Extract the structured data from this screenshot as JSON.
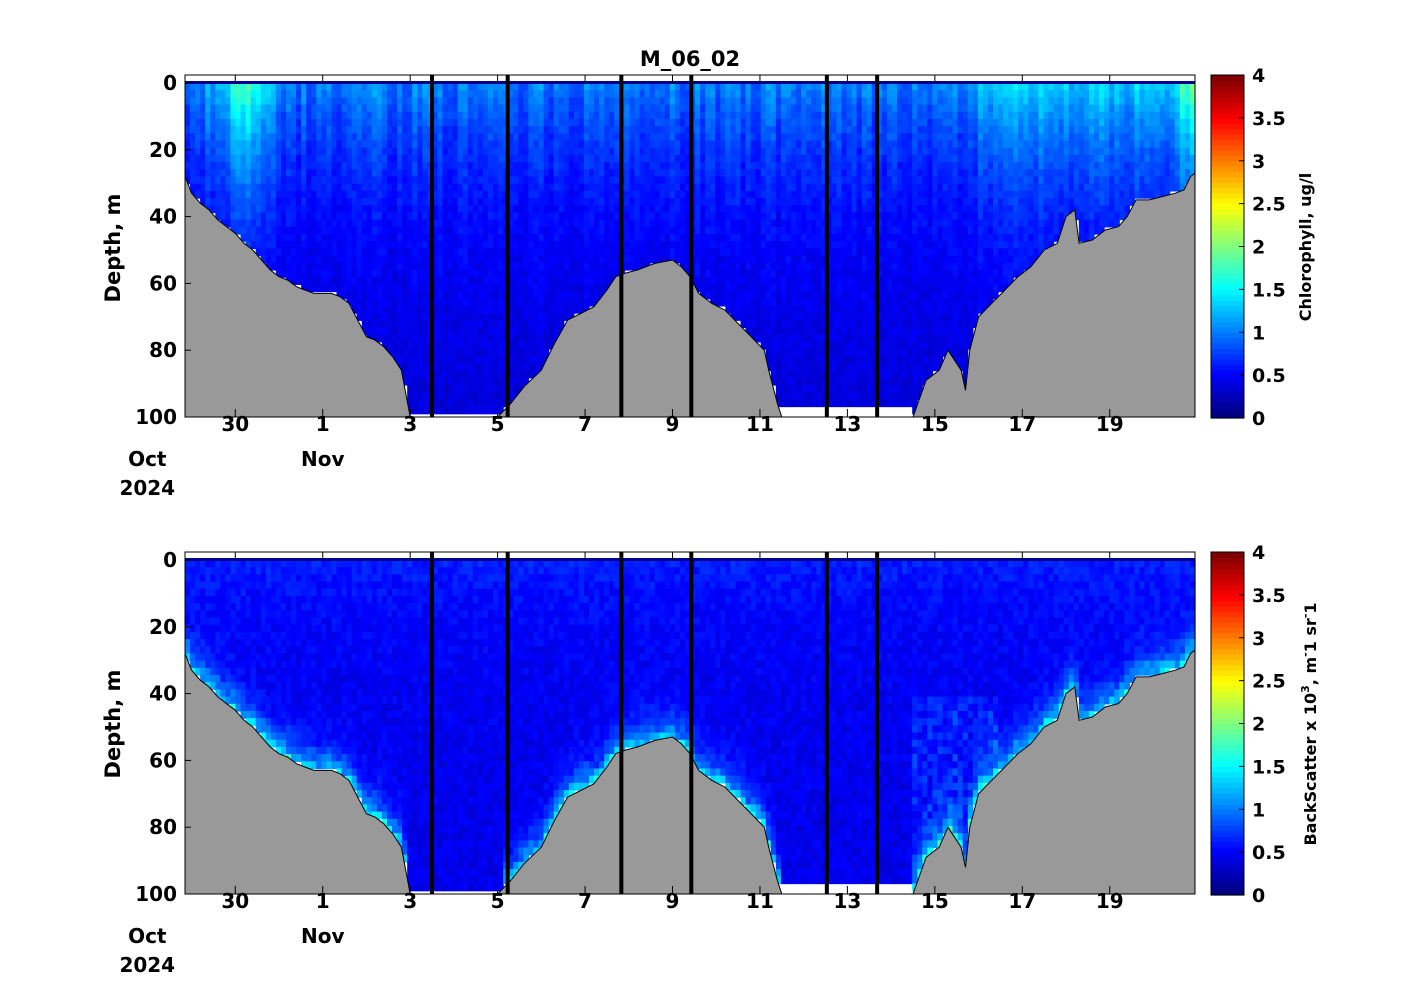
{
  "figure_title": "M_06_02",
  "colors": {
    "bathymetry": "#999999",
    "transect_lines": "#000000",
    "colormap": "jet"
  },
  "chart_data": [
    {
      "type": "heatmap",
      "name": "chlorophyll-section",
      "ylabel": "Depth, m",
      "colorbar_label": "Chlorophyll, ug/l",
      "clim": [
        0,
        4
      ],
      "colorbar_ticks": [
        "0",
        "0.5",
        "1",
        "1.5",
        "2",
        "2.5",
        "3",
        "3.5",
        "4"
      ],
      "ylim": [
        100,
        0
      ],
      "yticks": [
        "0",
        "20",
        "40",
        "60",
        "80",
        "100"
      ],
      "xticks": [
        {
          "day": 30,
          "label": "30",
          "sub": "Oct",
          "year": "2024"
        },
        {
          "day": 32,
          "label": "1",
          "sub": "Nov"
        },
        {
          "day": 34,
          "label": "3"
        },
        {
          "day": 36,
          "label": "5"
        },
        {
          "day": 38,
          "label": "7"
        },
        {
          "day": 40,
          "label": "9"
        },
        {
          "day": 42,
          "label": "11"
        },
        {
          "day": 44,
          "label": "13"
        },
        {
          "day": 46,
          "label": "15"
        },
        {
          "day": 48,
          "label": "17"
        },
        {
          "day": 50,
          "label": "19"
        }
      ],
      "xlim": [
        28.85,
        51.95
      ]
    },
    {
      "type": "heatmap",
      "name": "backscatter-section",
      "ylabel": "Depth, m",
      "colorbar_label_parts": [
        "BackScatter x 10",
        "3",
        ", m",
        "-",
        "1 sr",
        "-",
        "1"
      ],
      "clim": [
        0,
        4
      ],
      "colorbar_ticks": [
        "0",
        "0.5",
        "1",
        "1.5",
        "2",
        "2.5",
        "3",
        "3.5",
        "4"
      ],
      "ylim": [
        100,
        0
      ],
      "yticks": [
        "0",
        "20",
        "40",
        "60",
        "80",
        "100"
      ],
      "xticks": [
        {
          "day": 30,
          "label": "30",
          "sub": "Oct",
          "year": "2024"
        },
        {
          "day": 32,
          "label": "1",
          "sub": "Nov"
        },
        {
          "day": 34,
          "label": "3"
        },
        {
          "day": 36,
          "label": "5"
        },
        {
          "day": 38,
          "label": "7"
        },
        {
          "day": 40,
          "label": "9"
        },
        {
          "day": 42,
          "label": "11"
        },
        {
          "day": 44,
          "label": "13"
        },
        {
          "day": 46,
          "label": "15"
        },
        {
          "day": 48,
          "label": "17"
        },
        {
          "day": 50,
          "label": "19"
        }
      ],
      "xlim": [
        28.85,
        51.95
      ]
    }
  ],
  "transect_boundaries_day": [
    34.5,
    36.23,
    38.83,
    40.43,
    43.53,
    44.68
  ],
  "bathymetry_profile": [
    [
      28.85,
      28
    ],
    [
      29.0,
      33
    ],
    [
      29.2,
      36
    ],
    [
      29.4,
      38
    ],
    [
      29.6,
      41
    ],
    [
      29.8,
      43
    ],
    [
      30.0,
      45
    ],
    [
      30.2,
      48
    ],
    [
      30.4,
      50
    ],
    [
      30.6,
      53
    ],
    [
      30.8,
      56
    ],
    [
      31.0,
      58
    ],
    [
      31.2,
      59
    ],
    [
      31.4,
      61
    ],
    [
      31.6,
      62
    ],
    [
      31.8,
      63
    ],
    [
      32.0,
      63
    ],
    [
      32.2,
      63
    ],
    [
      32.4,
      64
    ],
    [
      32.6,
      66
    ],
    [
      32.8,
      71
    ],
    [
      33.0,
      76
    ],
    [
      33.2,
      77
    ],
    [
      33.4,
      79
    ],
    [
      33.6,
      82
    ],
    [
      33.8,
      86
    ],
    [
      33.9,
      93
    ],
    [
      34.0,
      100
    ],
    [
      35.8,
      100
    ],
    [
      36.0,
      100
    ],
    [
      36.3,
      96
    ],
    [
      36.6,
      91
    ],
    [
      37.0,
      86
    ],
    [
      37.3,
      78
    ],
    [
      37.6,
      71
    ],
    [
      37.9,
      69
    ],
    [
      38.2,
      67
    ],
    [
      38.5,
      62
    ],
    [
      38.7,
      58
    ],
    [
      38.9,
      57
    ],
    [
      39.2,
      56
    ],
    [
      39.6,
      54
    ],
    [
      40.0,
      53
    ],
    [
      40.2,
      55
    ],
    [
      40.4,
      58
    ],
    [
      40.6,
      63
    ],
    [
      40.9,
      66
    ],
    [
      41.2,
      68
    ],
    [
      41.5,
      72
    ],
    [
      41.8,
      76
    ],
    [
      42.1,
      80
    ],
    [
      42.2,
      86
    ],
    [
      42.4,
      96
    ],
    [
      42.5,
      100
    ],
    [
      45.5,
      100
    ],
    [
      45.8,
      89
    ],
    [
      46.1,
      86
    ],
    [
      46.3,
      80
    ],
    [
      46.6,
      86
    ],
    [
      46.7,
      92
    ],
    [
      46.8,
      80
    ],
    [
      47.0,
      70
    ],
    [
      47.3,
      66
    ],
    [
      47.6,
      62
    ],
    [
      47.9,
      58
    ],
    [
      48.2,
      55
    ],
    [
      48.5,
      50
    ],
    [
      48.8,
      48
    ],
    [
      49.0,
      40
    ],
    [
      49.2,
      38
    ],
    [
      49.3,
      48
    ],
    [
      49.6,
      47
    ],
    [
      49.9,
      44
    ],
    [
      50.2,
      43
    ],
    [
      50.4,
      40
    ],
    [
      50.6,
      35
    ],
    [
      50.9,
      35
    ],
    [
      51.2,
      34
    ],
    [
      51.5,
      33
    ],
    [
      51.7,
      32
    ],
    [
      51.85,
      28
    ],
    [
      51.95,
      27
    ]
  ]
}
